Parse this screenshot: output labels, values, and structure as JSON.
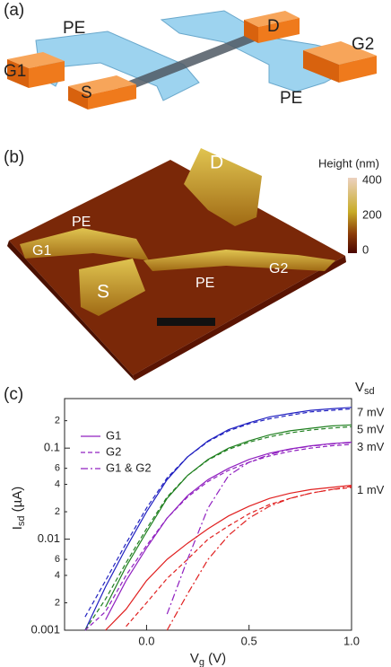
{
  "panel_a": {
    "label": "(a)",
    "texts": [
      "PE",
      "G1",
      "S",
      "D",
      "G2",
      "PE"
    ]
  },
  "panel_b": {
    "label": "(b)",
    "texts": [
      "D",
      "PE",
      "G1",
      "S",
      "PE",
      "G2"
    ],
    "colorbar": {
      "title": "Height (nm)",
      "ticks": [
        400,
        200,
        0
      ]
    }
  },
  "chart_data": {
    "type": "line",
    "panel_label": "(c)",
    "x": [
      -0.4,
      -0.3,
      -0.2,
      -0.1,
      0,
      0.1,
      0.2,
      0.3,
      0.4,
      0.5,
      0.6,
      0.7,
      0.8,
      0.9,
      1.0
    ],
    "xlim": [
      -0.4,
      1.0
    ],
    "xticks": [
      {
        "value": 0,
        "label": "0.0"
      },
      0.5,
      {
        "value": 1,
        "label": "1.0"
      }
    ],
    "ylim": [
      0.001,
      0.35
    ],
    "log_y": true,
    "yticks": [
      0.001,
      {
        "value": 0.002,
        "label": "2"
      },
      {
        "value": 0.004,
        "label": "4"
      },
      {
        "value": 0.006,
        "label": "6"
      },
      0.01,
      {
        "value": 0.02,
        "label": "2"
      },
      {
        "value": 0.04,
        "label": "4"
      },
      {
        "value": 0.06,
        "label": "6"
      },
      0.1,
      {
        "value": 0.2,
        "label": "2"
      }
    ],
    "xlabel": {
      "main": "V",
      "sub": "g",
      "rest": " (V)"
    },
    "ylabel": {
      "main": "I",
      "sub": "sd",
      "rest": " (µA)"
    },
    "group_title": {
      "main": "V",
      "sub": "sd"
    },
    "legend": [
      {
        "name": "G1",
        "style": "solid"
      },
      {
        "name": "G2",
        "style": "dashed"
      },
      {
        "name": "G1 & G2",
        "style": "dashdot"
      }
    ],
    "legend_color": "#9020c0",
    "groups": [
      {
        "label": "7 mV",
        "color": "#2020c0",
        "series": [
          {
            "legend": 0,
            "values": [
              null,
              0.001,
              0.003,
              0.008,
              0.02,
              0.045,
              0.08,
              0.12,
              0.16,
              0.19,
              0.22,
              0.24,
              0.26,
              0.27,
              0.28
            ]
          },
          {
            "legend": 1,
            "values": [
              null,
              0.0014,
              0.0035,
              0.009,
              0.022,
              0.047,
              0.08,
              0.118,
              0.155,
              0.185,
              0.21,
              0.23,
              0.25,
              0.26,
              0.27
            ]
          }
        ]
      },
      {
        "label": "5 mV",
        "color": "#208020",
        "series": [
          {
            "legend": 0,
            "values": [
              null,
              null,
              0.0018,
              0.005,
              0.012,
              0.028,
              0.05,
              0.075,
              0.1,
              0.12,
              0.14,
              0.155,
              0.165,
              0.175,
              0.18
            ]
          },
          {
            "legend": 1,
            "values": [
              null,
              0.001,
              0.0022,
              0.0055,
              0.013,
              0.029,
              0.05,
              0.074,
              0.097,
              0.116,
              0.133,
              0.147,
              0.158,
              0.166,
              0.172
            ]
          }
        ]
      },
      {
        "label": "3 mV",
        "color": "#9020c0",
        "series": [
          {
            "legend": 0,
            "values": [
              null,
              null,
              0.0013,
              0.0035,
              0.008,
              0.017,
              0.03,
              0.045,
              0.06,
              0.075,
              0.088,
              0.098,
              0.106,
              0.112,
              0.116
            ]
          },
          {
            "legend": 1,
            "values": [
              null,
              0.001,
              0.0016,
              0.004,
              0.0085,
              0.017,
              0.029,
              0.043,
              0.057,
              0.07,
              0.082,
              0.092,
              0.1,
              0.106,
              0.11
            ]
          },
          {
            "legend": 2,
            "values": [
              null,
              null,
              null,
              null,
              null,
              0.0015,
              0.006,
              0.022,
              0.05,
              0.07,
              0.085,
              0.097,
              0.105,
              0.111,
              0.115
            ]
          }
        ]
      },
      {
        "label": "1 mV",
        "color": "#e02020",
        "series": [
          {
            "legend": 0,
            "values": [
              null,
              null,
              0.001,
              0.0017,
              0.0035,
              0.006,
              0.009,
              0.013,
              0.018,
              0.023,
              0.028,
              0.032,
              0.035,
              0.037,
              0.039
            ]
          },
          {
            "legend": 1,
            "values": [
              null,
              null,
              null,
              0.0011,
              0.002,
              0.0037,
              0.006,
              0.01,
              0.014,
              0.019,
              0.024,
              0.028,
              0.032,
              0.035,
              0.037
            ]
          },
          {
            "legend": 2,
            "values": [
              null,
              null,
              null,
              null,
              null,
              0.001,
              0.0025,
              0.006,
              0.011,
              0.017,
              0.023,
              0.028,
              0.032,
              0.035,
              0.038
            ]
          }
        ]
      }
    ]
  }
}
